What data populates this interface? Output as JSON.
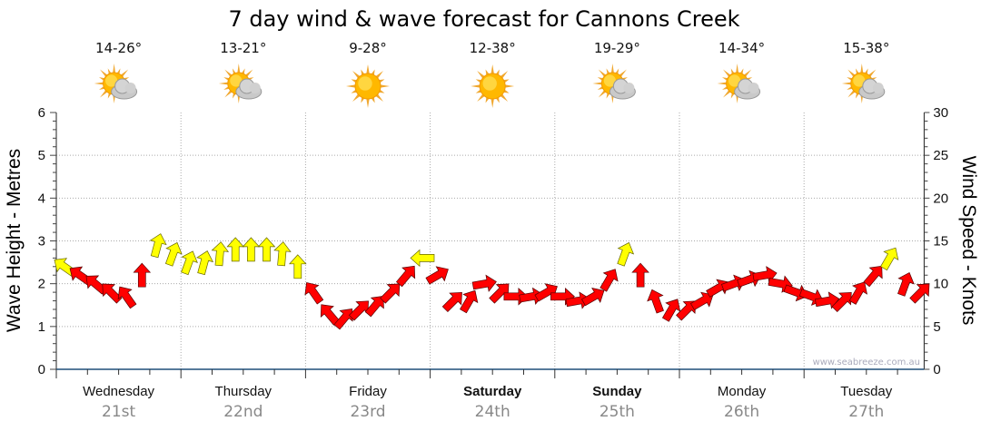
{
  "chart_data": {
    "type": "scatter",
    "title": "7 day wind & wave forecast for Cannons Creek",
    "ylabel_left": "Wave Height - Metres",
    "ylabel_right": "Wind Speed - Knots",
    "ylim_left": [
      0,
      6
    ],
    "ylim_right": [
      0,
      30
    ],
    "left_ticks": [
      "0",
      "1",
      "2",
      "3",
      "4",
      "5",
      "6"
    ],
    "right_ticks": [
      "0",
      "5",
      "10",
      "15",
      "20",
      "25",
      "30"
    ],
    "grid": true,
    "days": [
      {
        "name": "Wednesday",
        "date": "21st",
        "temp": "14-26°",
        "weather": "partly-cloudy",
        "bold": false
      },
      {
        "name": "Thursday",
        "date": "22nd",
        "temp": "13-21°",
        "weather": "partly-cloudy",
        "bold": false
      },
      {
        "name": "Friday",
        "date": "23rd",
        "temp": "9-28°",
        "weather": "sunny",
        "bold": false
      },
      {
        "name": "Saturday",
        "date": "24th",
        "temp": "12-38°",
        "weather": "sunny",
        "bold": true
      },
      {
        "name": "Sunday",
        "date": "25th",
        "temp": "19-29°",
        "weather": "partly-cloudy",
        "bold": true
      },
      {
        "name": "Monday",
        "date": "26th",
        "temp": "14-34°",
        "weather": "partly-cloudy",
        "bold": false
      },
      {
        "name": "Tuesday",
        "date": "27th",
        "temp": "15-38°",
        "weather": "partly-cloudy",
        "bold": false
      }
    ],
    "wind_series": {
      "name": "Wind",
      "interval_hours": 3,
      "speed_knots": [
        12,
        11,
        10,
        9,
        8.5,
        11,
        14.5,
        13.5,
        12.5,
        12.5,
        13.5,
        14,
        14,
        14,
        13.5,
        12,
        9,
        6.5,
        6,
        7,
        7.5,
        9,
        11,
        13,
        11,
        8,
        8,
        10,
        9,
        8.5,
        8.5,
        9,
        8.5,
        8,
        8.5,
        10.5,
        13.5,
        11,
        8,
        7,
        7,
        8,
        9.5,
        10,
        10.5,
        11,
        10,
        9,
        8.5,
        8,
        8,
        9,
        11,
        13,
        10,
        9
      ],
      "direction_arrow_deg": [
        -55,
        -55,
        -50,
        -45,
        -35,
        0,
        15,
        20,
        20,
        15,
        5,
        0,
        0,
        0,
        5,
        0,
        -35,
        -40,
        40,
        45,
        40,
        45,
        40,
        -90,
        60,
        45,
        30,
        80,
        45,
        90,
        80,
        60,
        90,
        80,
        60,
        30,
        20,
        0,
        -20,
        30,
        45,
        60,
        60,
        70,
        70,
        80,
        100,
        110,
        110,
        80,
        45,
        30,
        40,
        30,
        20,
        45
      ],
      "yellow_threshold_knots": 12
    },
    "watermark": "www.seabreeze.com.au",
    "colors": {
      "strong": "#ffff00",
      "light": "#ff0000",
      "axis": "#1f4e79",
      "grid": "#aaaaaa"
    }
  }
}
